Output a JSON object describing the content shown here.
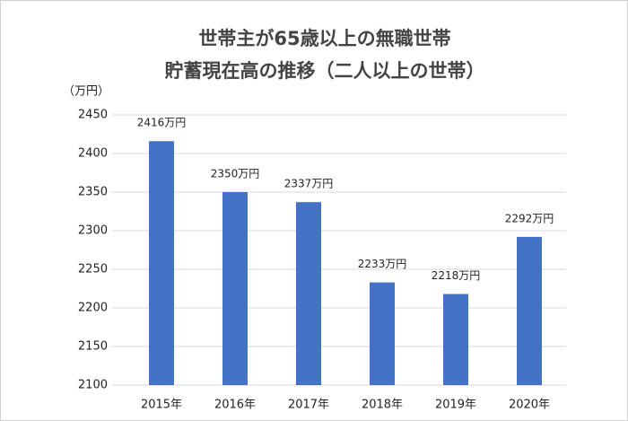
{
  "chart_data": {
    "type": "bar",
    "title": "世帯主が65歳以上の無職世帯",
    "subtitle": "貯蓄現在高の推移（二人以上の世帯）",
    "y_axis_label": "（万円）",
    "categories": [
      "2015年",
      "2016年",
      "2017年",
      "2018年",
      "2019年",
      "2020年"
    ],
    "values": [
      2416,
      2350,
      2337,
      2233,
      2218,
      2292
    ],
    "value_labels": [
      "2416万円",
      "2350万円",
      "2337万円",
      "2233万円",
      "2218万円",
      "2292万円"
    ],
    "color": "#4472c4",
    "ylim": [
      2100,
      2450
    ],
    "yticks": [
      2100,
      2150,
      2200,
      2250,
      2300,
      2350,
      2400,
      2450
    ],
    "grid": true
  }
}
